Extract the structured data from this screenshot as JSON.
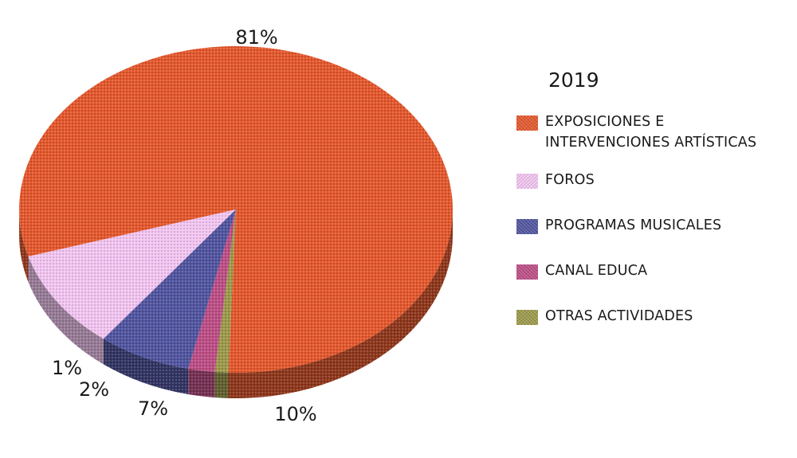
{
  "chart_data": {
    "type": "pie",
    "title": "2019",
    "slices": [
      {
        "name": "EXPOSICIONES E INTERVENCIONES ARTÍSTICAS",
        "value": 81,
        "label": "81%",
        "color": "#e5582d"
      },
      {
        "name": "FOROS",
        "value": 10,
        "label": "10%",
        "color": "#f3c6f2"
      },
      {
        "name": "PROGRAMAS MUSICALES",
        "value": 7,
        "label": "7%",
        "color": "#5155a0"
      },
      {
        "name": "CANAL EDUCA",
        "value": 2,
        "label": "2%",
        "color": "#bd4e86"
      },
      {
        "name": "OTRAS ACTIVIDADES",
        "value": 1,
        "label": "1%",
        "color": "#9c9a4a"
      }
    ],
    "legend_position": "right",
    "style": "3d-textured"
  },
  "legend": {
    "title": "2019",
    "items": [
      {
        "lines": [
          "EXPOSICIONES E",
          "INTERVENCIONES ARTÍSTICAS"
        ]
      },
      {
        "lines": [
          "FOROS"
        ]
      },
      {
        "lines": [
          "PROGRAMAS MUSICALES"
        ]
      },
      {
        "lines": [
          "CANAL EDUCA"
        ]
      },
      {
        "lines": [
          "OTRAS ACTIVIDADES"
        ]
      }
    ]
  }
}
